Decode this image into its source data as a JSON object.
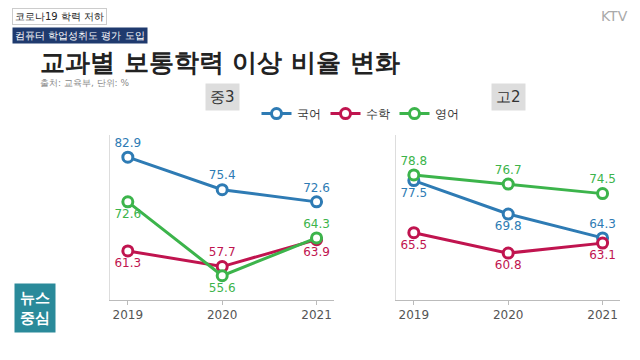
{
  "page": {
    "tag_top": "코로나19 학력 저하",
    "tag_bottom": "컴퓨터 학업성취도 평가 도입",
    "title": "교과별 보통학력 이상 비율 변화",
    "source": "출처: 교육부, 단위: %",
    "logo": "KTV",
    "badge": [
      "뉴스",
      "중심"
    ]
  },
  "chart_data": [
    {
      "type": "line",
      "title": "중3",
      "categories": [
        "2019",
        "2020",
        "2021"
      ],
      "series": [
        {
          "name": "국어",
          "color": "#2e7bb4",
          "values": [
            82.9,
            75.4,
            72.6
          ]
        },
        {
          "name": "수학",
          "color": "#c0144f",
          "values": [
            61.3,
            57.7,
            63.9
          ]
        },
        {
          "name": "영어",
          "color": "#3cb44b",
          "values": [
            72.6,
            55.6,
            64.3
          ]
        }
      ],
      "ylim": [
        50,
        88
      ],
      "data_labels": true,
      "tick_labels": "x",
      "grid": false,
      "legend": "top",
      "marker": "circle"
    },
    {
      "type": "line",
      "title": "고2",
      "categories": [
        "2019",
        "2020",
        "2021"
      ],
      "series": [
        {
          "name": "국어",
          "color": "#2e7bb4",
          "values": [
            77.5,
            69.8,
            64.3
          ]
        },
        {
          "name": "수학",
          "color": "#c0144f",
          "values": [
            65.5,
            60.8,
            63.1
          ]
        },
        {
          "name": "영어",
          "color": "#3cb44b",
          "values": [
            78.8,
            76.7,
            74.5
          ]
        }
      ],
      "ylim": [
        50,
        88
      ],
      "data_labels": true,
      "tick_labels": "x",
      "grid": false,
      "legend": "top",
      "marker": "circle"
    }
  ]
}
